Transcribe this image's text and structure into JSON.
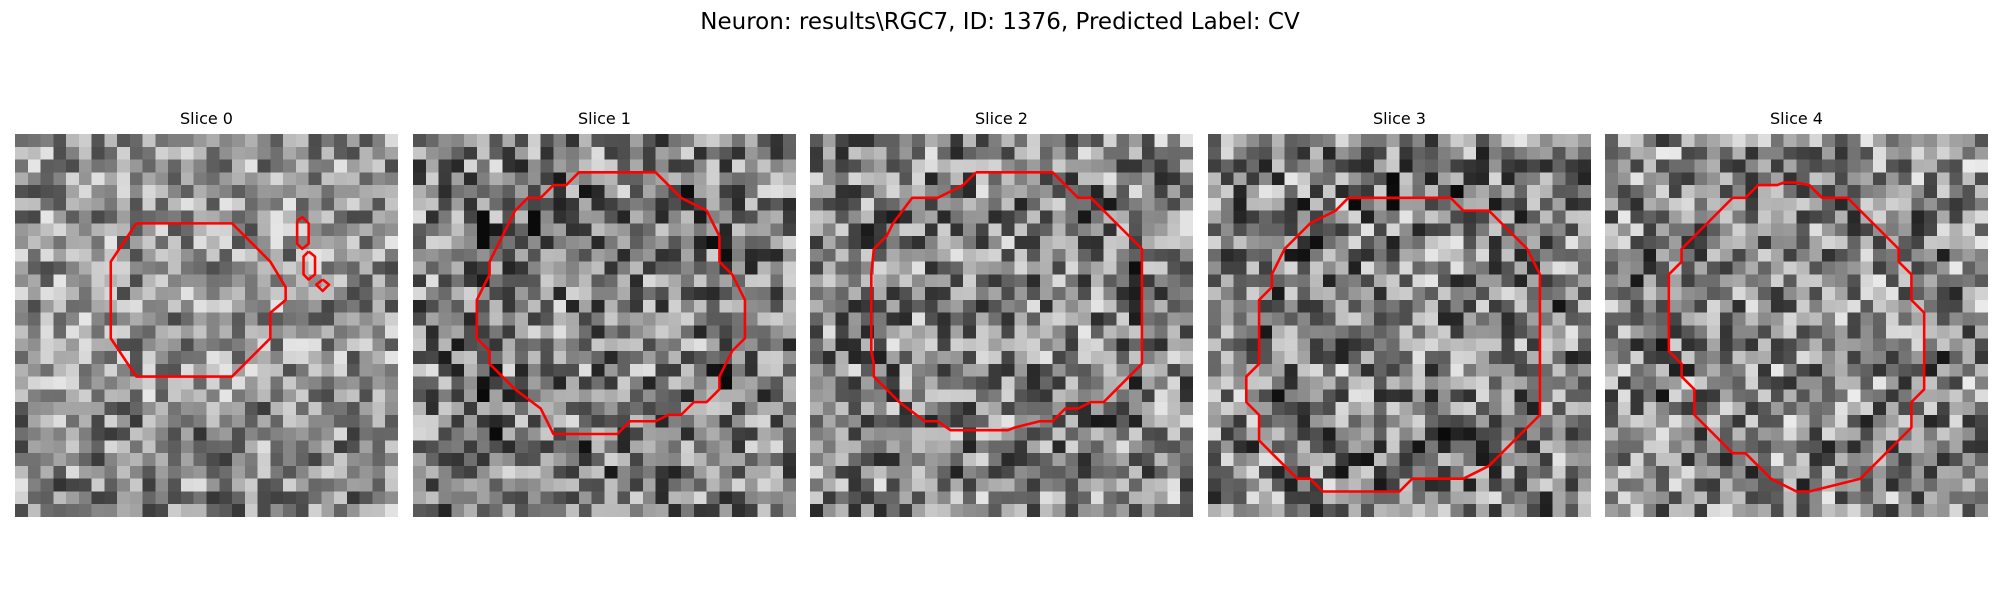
{
  "figure": {
    "title": "Neuron: results\\RGC7, ID: 1376, Predicted Label: CV",
    "contour_color": "#ff0000",
    "colormap": "gray",
    "panels": [
      {
        "label": "Slice 0"
      },
      {
        "label": "Slice 1"
      },
      {
        "label": "Slice 2"
      },
      {
        "label": "Slice 3"
      },
      {
        "label": "Slice 4"
      }
    ]
  }
}
